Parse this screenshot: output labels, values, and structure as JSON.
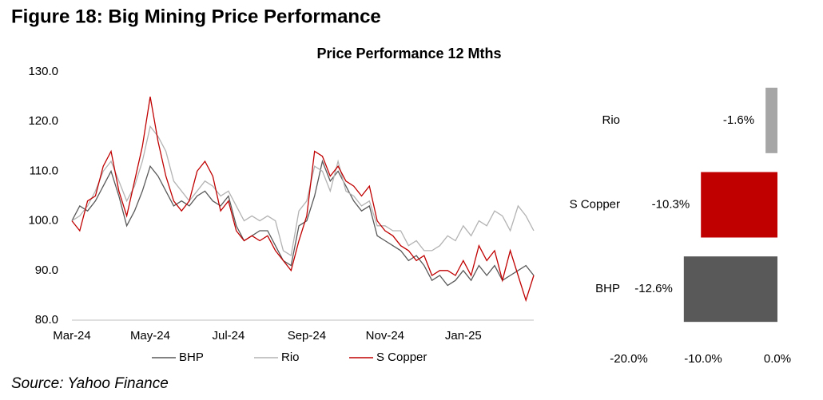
{
  "title": "Figure 18: Big Mining Price Performance",
  "source": "Source: Yahoo Finance",
  "chart_data": [
    {
      "type": "line",
      "title": "Price Performance 12 Mths",
      "categories": [
        "Mar-24",
        null,
        null,
        null,
        null,
        null,
        null,
        null,
        null,
        null,
        "May-24",
        null,
        null,
        null,
        null,
        null,
        null,
        null,
        null,
        null,
        "Jul-24",
        null,
        null,
        null,
        null,
        null,
        null,
        null,
        null,
        null,
        "Sep-24",
        null,
        null,
        null,
        null,
        null,
        null,
        null,
        null,
        null,
        "Nov-24",
        null,
        null,
        null,
        null,
        null,
        null,
        null,
        null,
        null,
        "Jan-25",
        null,
        null,
        null,
        null,
        null,
        null,
        null,
        null,
        null
      ],
      "series": [
        {
          "name": "BHP",
          "color": "#595959",
          "values": [
            100,
            103,
            102,
            104,
            107,
            110,
            105,
            99,
            102,
            106,
            111,
            109,
            106,
            103,
            104,
            103,
            105,
            106,
            104,
            103,
            105,
            99,
            96,
            97,
            98,
            98,
            95,
            92,
            91,
            99,
            100,
            105,
            112,
            108,
            110,
            107,
            104,
            102,
            103,
            97,
            96,
            95,
            94,
            92,
            93,
            91,
            88,
            89,
            87,
            88,
            90,
            88,
            91,
            89,
            91,
            88,
            89,
            90,
            91,
            89
          ]
        },
        {
          "name": "Rio",
          "color": "#b3b3b3",
          "values": [
            100,
            101,
            103,
            106,
            110,
            112,
            108,
            104,
            107,
            112,
            119,
            117,
            114,
            108,
            106,
            104,
            106,
            108,
            107,
            105,
            106,
            103,
            100,
            101,
            100,
            101,
            100,
            94,
            93,
            102,
            104,
            111,
            110,
            106,
            112,
            106,
            105,
            103,
            104,
            99,
            99,
            98,
            98,
            95,
            96,
            94,
            94,
            95,
            97,
            96,
            99,
            97,
            100,
            99,
            102,
            101,
            98,
            103,
            101,
            98
          ]
        },
        {
          "name": "S Copper",
          "color": "#c00000",
          "values": [
            100,
            98,
            104,
            105,
            111,
            114,
            106,
            101,
            108,
            115,
            125,
            116,
            109,
            104,
            102,
            104,
            110,
            112,
            109,
            102,
            104,
            98,
            96,
            97,
            96,
            97,
            94,
            92,
            90,
            96,
            101,
            114,
            113,
            109,
            111,
            108,
            107,
            105,
            107,
            100,
            98,
            97,
            95,
            94,
            92,
            93,
            89,
            90,
            90,
            89,
            92,
            89,
            95,
            92,
            94,
            88,
            94,
            89,
            84,
            89
          ]
        }
      ],
      "ylim": [
        80,
        130
      ],
      "yticks": [
        {
          "value": 80,
          "label": "80.0"
        },
        {
          "value": 90,
          "label": "90.0"
        },
        {
          "value": 100,
          "label": "100.0"
        },
        {
          "value": 110,
          "label": "110.0"
        },
        {
          "value": 120,
          "label": "120.0"
        },
        {
          "value": 130,
          "label": "130.0"
        }
      ],
      "legend": "bottom"
    },
    {
      "type": "hbar",
      "categories": [
        "Rio",
        "S Copper",
        "BHP"
      ],
      "values": [
        -1.6,
        -10.3,
        -12.6
      ],
      "value_labels": [
        "-1.6%",
        "-10.3%",
        "-12.6%"
      ],
      "colors": [
        "#a6a6a6",
        "#c00000",
        "#595959"
      ],
      "xlim": [
        -20,
        0
      ],
      "xticks": [
        {
          "value": -20,
          "label": "-20.0%"
        },
        {
          "value": -10,
          "label": "-10.0%"
        },
        {
          "value": 0,
          "label": "0.0%"
        }
      ]
    }
  ]
}
